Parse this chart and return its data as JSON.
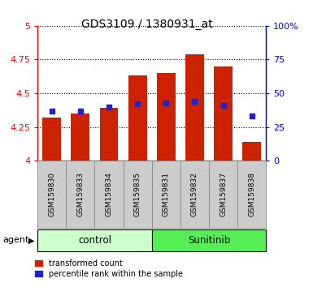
{
  "title": "GDS3109 / 1380931_at",
  "samples": [
    "GSM159830",
    "GSM159833",
    "GSM159834",
    "GSM159835",
    "GSM159831",
    "GSM159832",
    "GSM159837",
    "GSM159838"
  ],
  "red_values": [
    4.32,
    4.35,
    4.39,
    4.63,
    4.65,
    4.79,
    4.7,
    4.14
  ],
  "blue_values": [
    4.37,
    4.37,
    4.4,
    4.42,
    4.43,
    4.44,
    4.41,
    4.33
  ],
  "ylim_left": [
    4.0,
    5.0
  ],
  "ylim_right": [
    0,
    100
  ],
  "yticks_left": [
    4.0,
    4.25,
    4.5,
    4.75,
    5.0
  ],
  "ytick_labels_left": [
    "4",
    "4.25",
    "4.5",
    "4.75",
    "5"
  ],
  "yticks_right": [
    0,
    25,
    50,
    75,
    100
  ],
  "ytick_labels_right": [
    "0",
    "25",
    "50",
    "75",
    "100%"
  ],
  "bar_color": "#cc2200",
  "dot_color": "#2222cc",
  "bar_width": 0.65,
  "groups": [
    {
      "label": "control",
      "indices": [
        0,
        1,
        2,
        3
      ],
      "color": "#ccffcc"
    },
    {
      "label": "Sunitinib",
      "indices": [
        4,
        5,
        6,
        7
      ],
      "color": "#55ee55"
    }
  ],
  "agent_label": "agent",
  "legend_red": "transformed count",
  "legend_blue": "percentile rank within the sample",
  "sample_box_color": "#cccccc",
  "sample_box_edge": "#888888"
}
